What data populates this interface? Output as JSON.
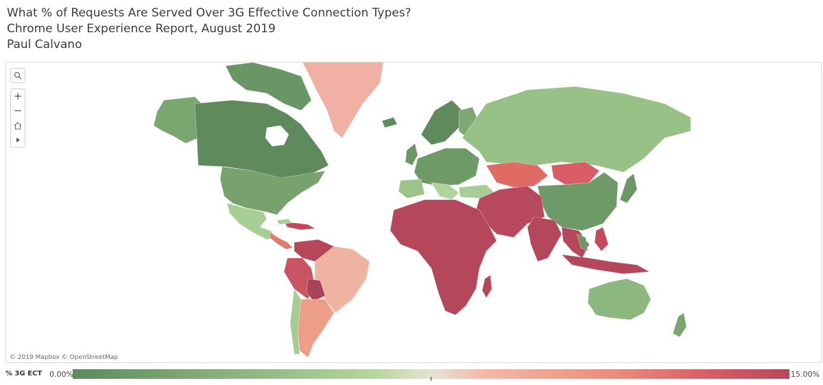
{
  "titles": {
    "line1": "What % of Requests Are Served Over 3G Effective Connection Types?",
    "line2": "Chrome User Experience Report, August 2019",
    "line3": "Paul Calvano"
  },
  "map": {
    "attribution": "© 2019 Mapbox  © OpenStreetMap",
    "toolbar": {
      "search_icon": "magnifier-icon",
      "zoom_in_label": "+",
      "zoom_out_label": "−",
      "home_icon": "home-icon",
      "expand_icon": "play-icon"
    },
    "colors": {
      "low": "#5e8a5c",
      "mid": "#e6e2d3",
      "high": "#b5475a"
    }
  },
  "legend": {
    "title": "% 3G ECT",
    "min_label": "0.00%",
    "max_label": "15.00%"
  }
}
